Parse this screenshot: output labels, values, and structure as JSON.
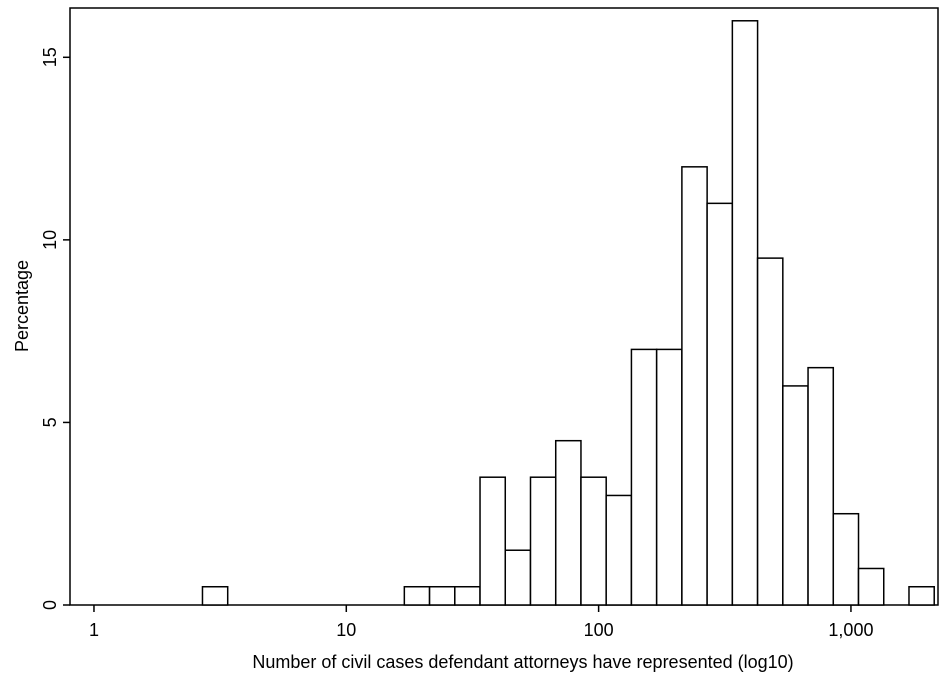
{
  "chart_data": {
    "type": "histogram",
    "xlabel": "Number of civil cases defendant attorneys have represented (log10)",
    "ylabel": "Percentage",
    "bins": [
      0.43,
      0.53,
      0.63,
      0.73,
      0.83,
      0.93,
      1.03,
      1.13,
      1.23,
      1.33,
      1.43,
      1.53,
      1.63,
      1.73,
      1.83,
      1.93,
      2.03,
      2.13,
      2.23,
      2.33,
      2.43,
      2.53,
      2.63,
      2.73,
      2.83,
      2.93,
      3.03,
      3.13,
      3.23,
      3.33
    ],
    "values": [
      0.5,
      0,
      0,
      0,
      0,
      0,
      0,
      0,
      0.5,
      0.5,
      0.5,
      3.5,
      1.5,
      3.5,
      4.5,
      3.5,
      3,
      7,
      7,
      12,
      11,
      16,
      9.5,
      6,
      6.5,
      2.5,
      1,
      0,
      0.5
    ],
    "color": "#ffffff",
    "xlim": [
      -0.095,
      3.345
    ],
    "xticks": [
      {
        "value": 0,
        "label": "1"
      },
      {
        "value": 1,
        "label": "10"
      },
      {
        "value": 2,
        "label": "100"
      },
      {
        "value": 3,
        "label": "1,000"
      }
    ],
    "ylim": [
      0,
      16.35
    ],
    "yticks": [
      0,
      5,
      10,
      15
    ]
  }
}
